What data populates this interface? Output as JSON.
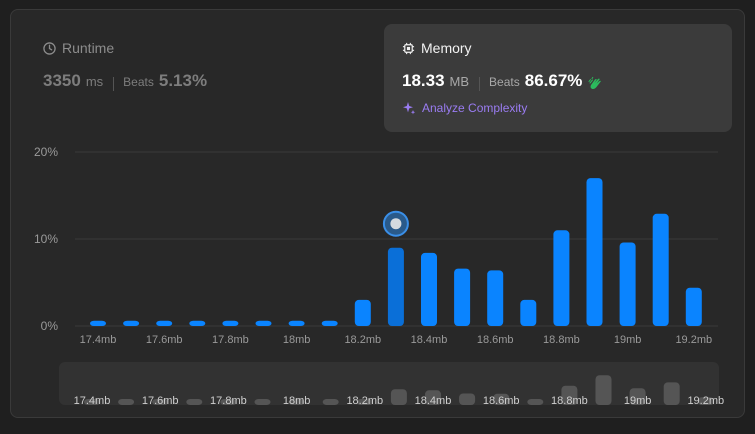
{
  "runtime": {
    "title": "Runtime",
    "value": "3350",
    "unit": "ms",
    "beats_label": "Beats",
    "beats_value": "5.13%"
  },
  "memory": {
    "title": "Memory",
    "value": "18.33",
    "unit": "MB",
    "beats_label": "Beats",
    "beats_value": "86.67%",
    "analyze_label": "Analyze Complexity"
  },
  "colors": {
    "bar": "#0a84ff",
    "bar_selected": "#0a6fd8",
    "mini_bar": "#555555",
    "grid": "#3a3a3a",
    "axis_text": "#9a9a9a",
    "accent_purple": "#9a7cf2",
    "clap_green": "#2cbb5d"
  },
  "chart_data": {
    "type": "bar",
    "title": "",
    "xlabel": "",
    "ylabel": "",
    "ylim": [
      0,
      20
    ],
    "y_ticks": [
      "0%",
      "10%",
      "20%"
    ],
    "x_tick_labels": [
      "17.4mb",
      "17.6mb",
      "17.8mb",
      "18mb",
      "18.2mb",
      "18.4mb",
      "18.6mb",
      "18.8mb",
      "19mb",
      "19.2mb"
    ],
    "values": [
      0.6,
      0.6,
      0.6,
      0.6,
      0.6,
      0.6,
      0.6,
      0.6,
      3.0,
      9.0,
      8.4,
      6.6,
      6.4,
      3.0,
      11.0,
      17.0,
      9.6,
      12.9,
      4.4
    ],
    "selected_index": 9,
    "grid": true,
    "legend": "none"
  }
}
